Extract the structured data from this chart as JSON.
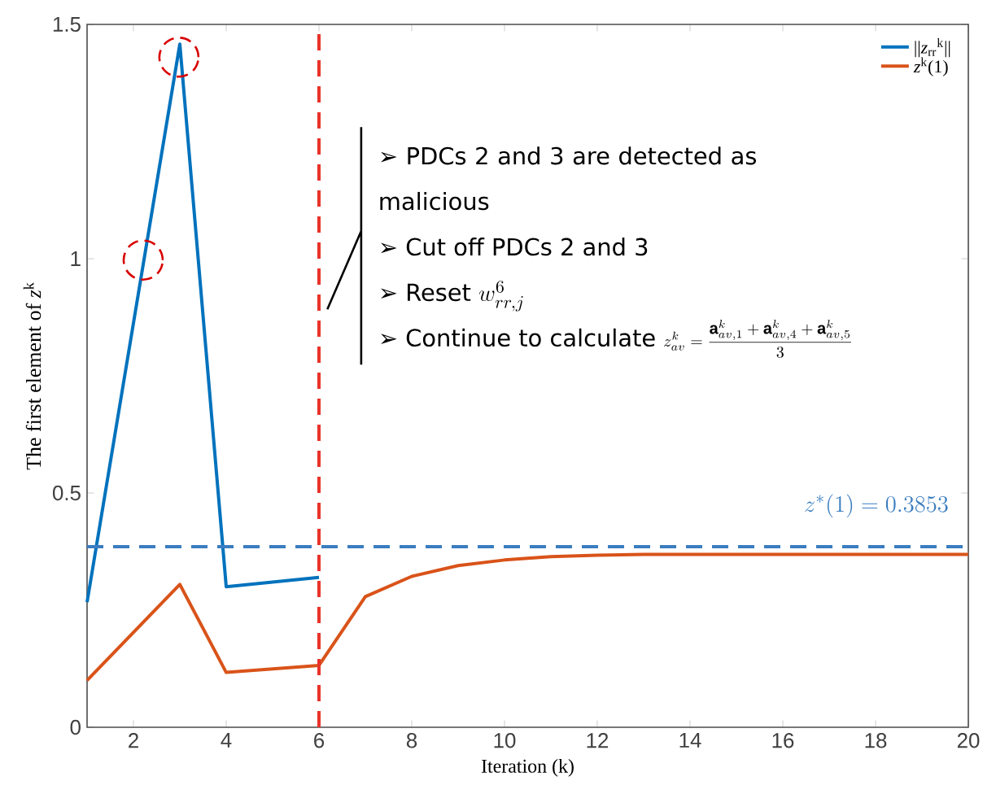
{
  "chart_data": {
    "type": "line",
    "xlabel": "Iteration (k)",
    "ylabel": "The first element of *z*$^{k}$",
    "xlim": [
      1,
      20
    ],
    "ylim": [
      0,
      1.5
    ],
    "xticks": [
      2,
      4,
      6,
      8,
      10,
      12,
      14,
      16,
      18,
      20
    ],
    "yticks": [
      0,
      0.5,
      1,
      1.5
    ],
    "legend": "top right",
    "series": [
      {
        "name": "||*z*$_{rr}$$^{k}$||",
        "color": "#0072bd",
        "x": [
          1,
          3,
          4,
          6
        ],
        "values": [
          0.267,
          1.458,
          0.3,
          0.32
        ]
      },
      {
        "name": "*z*$^{k}$(1)",
        "color": "#d95319",
        "x": [
          1,
          3,
          4,
          6,
          7,
          8,
          9,
          10,
          11,
          12,
          13,
          14,
          15,
          16,
          17,
          18,
          19,
          20
        ],
        "values": [
          0.1,
          0.305,
          0.117,
          0.132,
          0.279,
          0.322,
          0.345,
          0.357,
          0.364,
          0.367,
          0.369,
          0.369,
          0.369,
          0.369,
          0.369,
          0.369,
          0.369,
          0.369
        ]
      }
    ],
    "ref_lines": [
      {
        "axis": "y",
        "value": 0.3853,
        "label": "z^{*}(1)=0.3853",
        "color": "#3a7dc0",
        "line_style": "dashed"
      },
      {
        "axis": "x",
        "value": 6,
        "color": "#e8332a",
        "line_style": "dashed"
      }
    ],
    "annotations": [
      "➢ PDCs 2 and 3 are detected as malicious",
      "➢ Cut off PDCs 2 and 3",
      "➢ Reset",
      "w_{rr,j}^{6}",
      "➢ Continue to calculate",
      "z_{av}^{k}=\\frac{\\mathbf{a}_{av,1}^{k}+\\mathbf{a}_{av,4}^{k}+\\mathbf{a}_{av,5}^{k}}{3}"
    ]
  }
}
